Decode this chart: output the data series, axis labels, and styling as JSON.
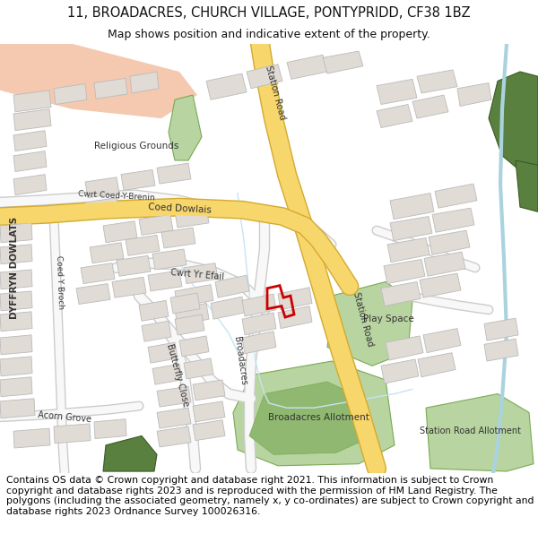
{
  "title_line1": "11, BROADACRES, CHURCH VILLAGE, PONTYPRIDD, CF38 1BZ",
  "title_line2": "Map shows position and indicative extent of the property.",
  "footer_text": "Contains OS data © Crown copyright and database right 2021. This information is subject to Crown copyright and database rights 2023 and is reproduced with the permission of HM Land Registry. The polygons (including the associated geometry, namely x, y co-ordinates) are subject to Crown copyright and database rights 2023 Ordnance Survey 100026316.",
  "bg": "#ffffff",
  "map_bg": "#ffffff",
  "road_white": "#f5f5f5",
  "road_outline": "#cccccc",
  "road_yellow": "#f7d66b",
  "road_yellow_outline": "#d4aa30",
  "building_fill": "#e0dbd5",
  "building_edge": "#bbbbbb",
  "green1": "#b8d4a0",
  "green2": "#7aaa55",
  "green_dark": "#5a8040",
  "orange_area": "#f5c8b0",
  "water_blue": "#aad3df",
  "red_plot": "#cc0000",
  "text_color": "#333333",
  "title_fs": 10.5,
  "subtitle_fs": 9,
  "footer_fs": 7.8,
  "label_fs": 7.5,
  "small_fs": 6.5
}
